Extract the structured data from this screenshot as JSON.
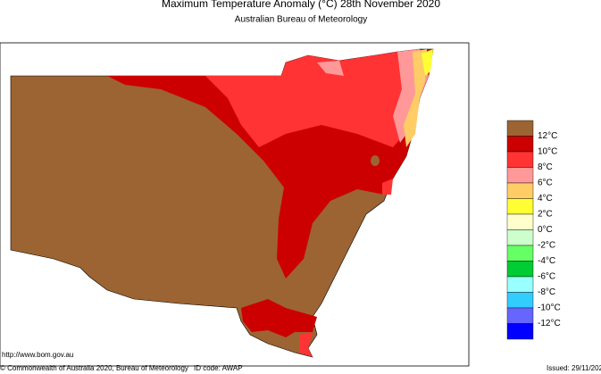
{
  "header": {
    "title": "Maximum Temperature Anomaly (°C)  28th November 2020",
    "subtitle": "Australian Bureau of Meteorology"
  },
  "legend": {
    "colors": [
      "#9c6432",
      "#cc0000",
      "#ff3333",
      "#ff9999",
      "#ffcc66",
      "#ffff33",
      "#ffffcc",
      "#ccffcc",
      "#66ff66",
      "#00cc33",
      "#99ffff",
      "#33ccff",
      "#6666ff",
      "#0000ff"
    ],
    "labels": [
      "12°C",
      "10°C",
      "8°C",
      "6°C",
      "4°C",
      "2°C",
      "0°C",
      "-2°C",
      "-4°C",
      "-6°C",
      "-8°C",
      "-10°C",
      "-12°C"
    ]
  },
  "footer": {
    "url": "http://www.bom.gov.au",
    "copyright": "© Commonwealth of Australia 2020, Bureau of Meteorology",
    "id_code": "ID code: AWAP",
    "issued": "Issued: 29/11/202"
  }
}
